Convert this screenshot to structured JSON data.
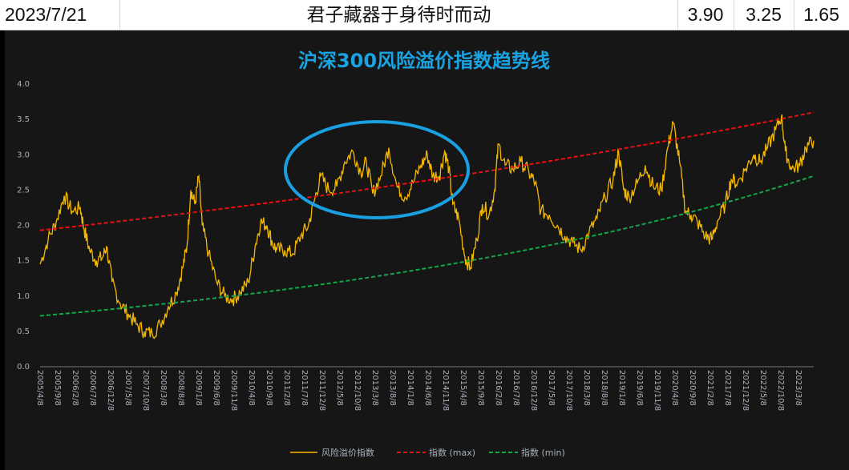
{
  "header": {
    "date": "2023/7/21",
    "motto": "君子藏器于身待时而动",
    "values": [
      "3.90",
      "3.25",
      "1.65"
    ]
  },
  "chart_data": {
    "type": "line",
    "title": "沪深300风险溢价指数趋势线",
    "ylim": [
      0,
      4
    ],
    "yticks": [
      "0.0",
      "0.5",
      "1.0",
      "1.5",
      "2.0",
      "2.5",
      "3.0",
      "3.5",
      "4.0"
    ],
    "xlim_year": [
      2005.27,
      2023.55
    ],
    "xtick_labels": [
      "2005/4/8",
      "2005/9/8",
      "2006/2/8",
      "2006/7/8",
      "2006/12/8",
      "2007/5/8",
      "2007/10/8",
      "2008/3/8",
      "2008/8/8",
      "2009/1/8",
      "2009/6/8",
      "2009/11/8",
      "2010/4/8",
      "2010/9/8",
      "2011/2/8",
      "2011/7/8",
      "2011/12/8",
      "2012/5/8",
      "2012/10/8",
      "2013/3/8",
      "2013/8/8",
      "2014/1/8",
      "2014/6/8",
      "2014/11/8",
      "2015/4/8",
      "2015/9/8",
      "2016/2/8",
      "2016/7/8",
      "2016/12/8",
      "2017/5/8",
      "2017/10/8",
      "2018/3/8",
      "2018/8/8",
      "2019/1/8",
      "2019/6/8",
      "2019/11/8",
      "2020/4/8",
      "2020/9/8",
      "2021/2/8",
      "2021/7/8",
      "2021/12/8",
      "2022/5/8",
      "2022/10/8",
      "2023/3/8"
    ],
    "series": [
      {
        "name": "风险溢价指数",
        "color": "#f5b800",
        "style": "solid",
        "points": [
          [
            2005.27,
            1.45
          ],
          [
            2005.46,
            1.8
          ],
          [
            2005.65,
            2.05
          ],
          [
            2005.84,
            2.42
          ],
          [
            2006.03,
            2.2
          ],
          [
            2006.22,
            2.25
          ],
          [
            2006.31,
            1.95
          ],
          [
            2006.44,
            1.65
          ],
          [
            2006.6,
            1.5
          ],
          [
            2006.75,
            1.55
          ],
          [
            2006.84,
            1.7
          ],
          [
            2006.97,
            1.2
          ],
          [
            2007.16,
            0.9
          ],
          [
            2007.35,
            0.75
          ],
          [
            2007.54,
            0.6
          ],
          [
            2007.73,
            0.5
          ],
          [
            2007.92,
            0.47
          ],
          [
            2008.11,
            0.6
          ],
          [
            2008.3,
            0.85
          ],
          [
            2008.49,
            1.05
          ],
          [
            2008.64,
            1.4
          ],
          [
            2008.74,
            1.7
          ],
          [
            2008.83,
            2.5
          ],
          [
            2008.93,
            2.3
          ],
          [
            2009.02,
            2.7
          ],
          [
            2009.1,
            2.0
          ],
          [
            2009.25,
            1.6
          ],
          [
            2009.44,
            1.2
          ],
          [
            2009.63,
            1.0
          ],
          [
            2009.82,
            0.95
          ],
          [
            2010.0,
            1.05
          ],
          [
            2010.19,
            1.2
          ],
          [
            2010.35,
            1.7
          ],
          [
            2010.48,
            2.05
          ],
          [
            2010.63,
            2.0
          ],
          [
            2010.76,
            1.75
          ],
          [
            2010.86,
            1.65
          ],
          [
            2011.05,
            1.65
          ],
          [
            2011.24,
            1.6
          ],
          [
            2011.43,
            1.85
          ],
          [
            2011.61,
            2.0
          ],
          [
            2011.75,
            2.35
          ],
          [
            2011.9,
            2.7
          ],
          [
            2012.09,
            2.5
          ],
          [
            2012.28,
            2.55
          ],
          [
            2012.47,
            2.9
          ],
          [
            2012.66,
            3.05
          ],
          [
            2012.85,
            2.75
          ],
          [
            2012.98,
            2.9
          ],
          [
            2013.13,
            2.45
          ],
          [
            2013.32,
            2.7
          ],
          [
            2013.51,
            3.1
          ],
          [
            2013.7,
            2.55
          ],
          [
            2013.89,
            2.4
          ],
          [
            2014.08,
            2.6
          ],
          [
            2014.27,
            2.85
          ],
          [
            2014.42,
            3.0
          ],
          [
            2014.55,
            2.7
          ],
          [
            2014.7,
            2.7
          ],
          [
            2014.83,
            3.05
          ],
          [
            2014.93,
            2.8
          ],
          [
            2015.02,
            2.3
          ],
          [
            2015.16,
            2.1
          ],
          [
            2015.31,
            1.55
          ],
          [
            2015.44,
            1.4
          ],
          [
            2015.59,
            1.8
          ],
          [
            2015.72,
            2.3
          ],
          [
            2015.88,
            2.15
          ],
          [
            2016.01,
            2.5
          ],
          [
            2016.1,
            3.15
          ],
          [
            2016.26,
            2.85
          ],
          [
            2016.44,
            2.8
          ],
          [
            2016.63,
            2.9
          ],
          [
            2016.82,
            2.75
          ],
          [
            2016.97,
            2.6
          ],
          [
            2017.1,
            2.2
          ],
          [
            2017.3,
            2.15
          ],
          [
            2017.49,
            2.0
          ],
          [
            2017.67,
            1.85
          ],
          [
            2017.86,
            1.75
          ],
          [
            2018.05,
            1.65
          ],
          [
            2018.24,
            1.9
          ],
          [
            2018.43,
            2.1
          ],
          [
            2018.62,
            2.4
          ],
          [
            2018.81,
            2.65
          ],
          [
            2018.94,
            3.05
          ],
          [
            2019.06,
            2.5
          ],
          [
            2019.19,
            2.4
          ],
          [
            2019.38,
            2.6
          ],
          [
            2019.57,
            2.85
          ],
          [
            2019.76,
            2.55
          ],
          [
            2019.95,
            2.5
          ],
          [
            2020.1,
            3.1
          ],
          [
            2020.23,
            3.45
          ],
          [
            2020.38,
            2.9
          ],
          [
            2020.52,
            2.2
          ],
          [
            2020.65,
            2.15
          ],
          [
            2020.8,
            2.05
          ],
          [
            2020.99,
            1.85
          ],
          [
            2021.14,
            1.8
          ],
          [
            2021.27,
            2.05
          ],
          [
            2021.46,
            2.3
          ],
          [
            2021.6,
            2.65
          ],
          [
            2021.75,
            2.6
          ],
          [
            2021.94,
            2.8
          ],
          [
            2022.13,
            3.0
          ],
          [
            2022.28,
            2.9
          ],
          [
            2022.46,
            3.1
          ],
          [
            2022.65,
            3.35
          ],
          [
            2022.79,
            3.55
          ],
          [
            2022.88,
            3.05
          ],
          [
            2023.03,
            2.8
          ],
          [
            2023.22,
            2.85
          ],
          [
            2023.36,
            3.1
          ],
          [
            2023.55,
            3.2
          ]
        ]
      },
      {
        "name": "指数 (max)",
        "color": "#e81010",
        "style": "dashed",
        "trend": "exponential",
        "start": 1.93,
        "end": 3.6
      },
      {
        "name": "指数 (min)",
        "color": "#12a84a",
        "style": "dashed",
        "trend": "exponential",
        "start": 0.72,
        "end": 2.7
      }
    ],
    "annotation": {
      "shape": "ellipse",
      "color": "#1a9fe0"
    },
    "legend": "bottom",
    "grid": false
  }
}
